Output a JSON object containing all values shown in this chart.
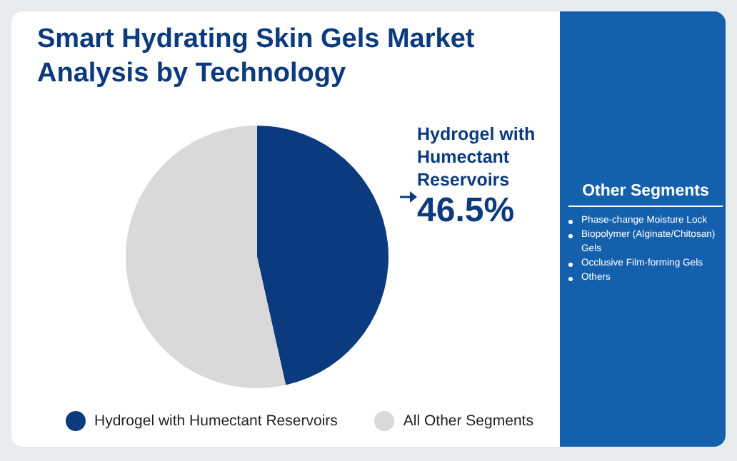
{
  "chart_data": {
    "type": "pie",
    "title": "Smart Hydrating Skin Gels Market Analysis by Technology",
    "categories": [
      "Hydrogel with Humectant Reservoirs",
      "All Other Segments"
    ],
    "values": [
      46.5,
      53.5
    ],
    "colors": [
      "#0b3a7e",
      "#d9d9d9"
    ],
    "value_labels": [
      "46.5%",
      null
    ],
    "legend": "bottom",
    "annotations": [
      "Other Segments",
      "Phase-change Moisture Lock",
      "Biopolymer (Alginate/Chitosan) Gels",
      "Occlusive Film-forming Gels",
      "Others"
    ]
  }
}
